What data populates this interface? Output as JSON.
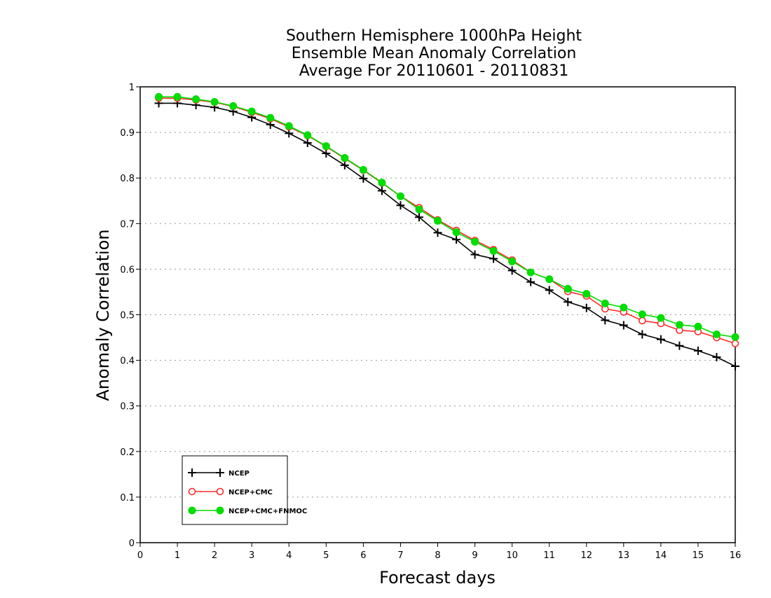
{
  "chart_data": {
    "type": "line",
    "title": [
      "Southern Hemisphere 1000hPa Height",
      "Ensemble Mean Anomaly Correlation",
      "Average For 20110601 - 20110831"
    ],
    "xlabel": "Forecast days",
    "ylabel": "Anomaly Correlation",
    "xlim": [
      0,
      16
    ],
    "ylim": [
      0,
      1
    ],
    "xticks": [
      0,
      1,
      2,
      3,
      4,
      5,
      6,
      7,
      8,
      9,
      10,
      11,
      12,
      13,
      14,
      15,
      16
    ],
    "xtick_labels": [
      "0",
      "1",
      "2",
      "3",
      "4",
      "5",
      "6",
      "7",
      "8",
      "9",
      "10",
      "11",
      "12",
      "13",
      "14",
      "15",
      "16"
    ],
    "yticks": [
      0,
      0.1,
      0.2,
      0.3,
      0.4,
      0.5,
      0.6,
      0.7,
      0.8,
      0.9,
      1
    ],
    "ytick_labels": [
      "0",
      "0.1",
      "0.2",
      "0.3",
      "0.4",
      "0.5",
      "0.6",
      "0.7",
      "0.8",
      "0.9",
      "1"
    ],
    "grid": "horizontal-dotted",
    "legend_position": "bottom-left",
    "x": [
      0.5,
      1,
      1.5,
      2,
      2.5,
      3,
      3.5,
      4,
      4.5,
      5,
      5.5,
      6,
      6.5,
      7,
      7.5,
      8,
      8.5,
      9,
      9.5,
      10,
      10.5,
      11,
      11.5,
      12,
      12.5,
      13,
      13.5,
      14,
      14.5,
      15,
      15.5,
      16
    ],
    "series": [
      {
        "name": "NCEP",
        "color": "#000000",
        "marker": "plus",
        "values": [
          0.964,
          0.964,
          0.96,
          0.955,
          0.946,
          0.933,
          0.917,
          0.898,
          0.877,
          0.854,
          0.828,
          0.799,
          0.772,
          0.74,
          0.714,
          0.68,
          0.665,
          0.632,
          0.623,
          0.597,
          0.572,
          0.554,
          0.528,
          0.515,
          0.488,
          0.477,
          0.457,
          0.446,
          0.432,
          0.421,
          0.407,
          0.387
        ]
      },
      {
        "name": "NCEP+CMC",
        "color": "#ff2a2a",
        "marker": "open-circle",
        "values": [
          0.975,
          0.975,
          0.971,
          0.966,
          0.957,
          0.944,
          0.93,
          0.912,
          0.893,
          0.869,
          0.843,
          0.817,
          0.789,
          0.76,
          0.735,
          0.708,
          0.685,
          0.663,
          0.643,
          0.62,
          0.593,
          0.578,
          0.551,
          0.541,
          0.513,
          0.506,
          0.487,
          0.481,
          0.466,
          0.463,
          0.45,
          0.437
        ]
      },
      {
        "name": "NCEP+CMC+FNMOC",
        "color": "#00dd00",
        "marker": "filled-circle",
        "values": [
          0.978,
          0.978,
          0.973,
          0.967,
          0.958,
          0.946,
          0.932,
          0.914,
          0.894,
          0.87,
          0.844,
          0.818,
          0.79,
          0.76,
          0.731,
          0.706,
          0.681,
          0.66,
          0.64,
          0.617,
          0.593,
          0.578,
          0.557,
          0.546,
          0.525,
          0.516,
          0.501,
          0.493,
          0.478,
          0.474,
          0.457,
          0.451
        ]
      }
    ]
  }
}
